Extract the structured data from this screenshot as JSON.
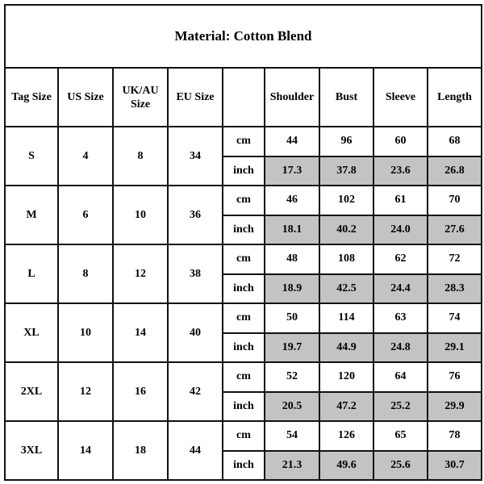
{
  "title": "Material: Cotton Blend",
  "headers": [
    "Tag Size",
    "US Size",
    "UK/AU Size",
    "EU Size",
    "",
    "Shoulder",
    "Bust",
    "Sleeve",
    "Length"
  ],
  "units": {
    "cm": "cm",
    "inch": "inch"
  },
  "shade_color": "#c3c3c3",
  "sizes": [
    {
      "tag": "S",
      "us": "4",
      "uk_au": "8",
      "eu": "34",
      "cm": [
        "44",
        "96",
        "60",
        "68"
      ],
      "inch": [
        "17.3",
        "37.8",
        "23.6",
        "26.8"
      ]
    },
    {
      "tag": "M",
      "us": "6",
      "uk_au": "10",
      "eu": "36",
      "cm": [
        "46",
        "102",
        "61",
        "70"
      ],
      "inch": [
        "18.1",
        "40.2",
        "24.0",
        "27.6"
      ]
    },
    {
      "tag": "L",
      "us": "8",
      "uk_au": "12",
      "eu": "38",
      "cm": [
        "48",
        "108",
        "62",
        "72"
      ],
      "inch": [
        "18.9",
        "42.5",
        "24.4",
        "28.3"
      ]
    },
    {
      "tag": "XL",
      "us": "10",
      "uk_au": "14",
      "eu": "40",
      "cm": [
        "50",
        "114",
        "63",
        "74"
      ],
      "inch": [
        "19.7",
        "44.9",
        "24.8",
        "29.1"
      ]
    },
    {
      "tag": "2XL",
      "us": "12",
      "uk_au": "16",
      "eu": "42",
      "cm": [
        "52",
        "120",
        "64",
        "76"
      ],
      "inch": [
        "20.5",
        "47.2",
        "25.2",
        "29.9"
      ]
    },
    {
      "tag": "3XL",
      "us": "14",
      "uk_au": "18",
      "eu": "44",
      "cm": [
        "54",
        "126",
        "65",
        "78"
      ],
      "inch": [
        "21.3",
        "49.6",
        "25.6",
        "30.7"
      ]
    }
  ]
}
